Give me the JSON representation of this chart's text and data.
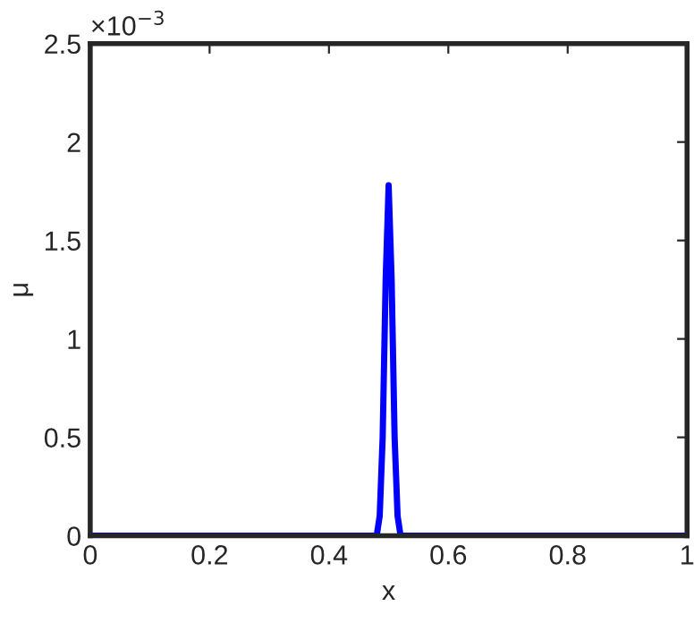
{
  "chart_data": {
    "type": "line",
    "xlabel": "x",
    "ylabel": "μ",
    "annotations": [
      "×10$^{−3}$"
    ],
    "series": [
      {
        "color": "#0000ff",
        "x": [
          0,
          0.48,
          0.485,
          0.49,
          0.495,
          0.5,
          0.505,
          0.51,
          0.515,
          0.52,
          1
        ],
        "values": [
          0,
          0,
          0.1,
          0.5,
          1.3,
          1.78,
          1.3,
          0.5,
          0.1,
          0,
          0
        ]
      }
    ],
    "xlim": [
      0,
      1
    ],
    "xticks": [
      0,
      0.2,
      0.4,
      0.6,
      0.8,
      1
    ],
    "ylim": [
      0,
      2.5
    ],
    "yticks": [
      0,
      0.5,
      1,
      1.5,
      2,
      2.5
    ],
    "grid": false,
    "legend": false,
    "line_style": "solid"
  }
}
